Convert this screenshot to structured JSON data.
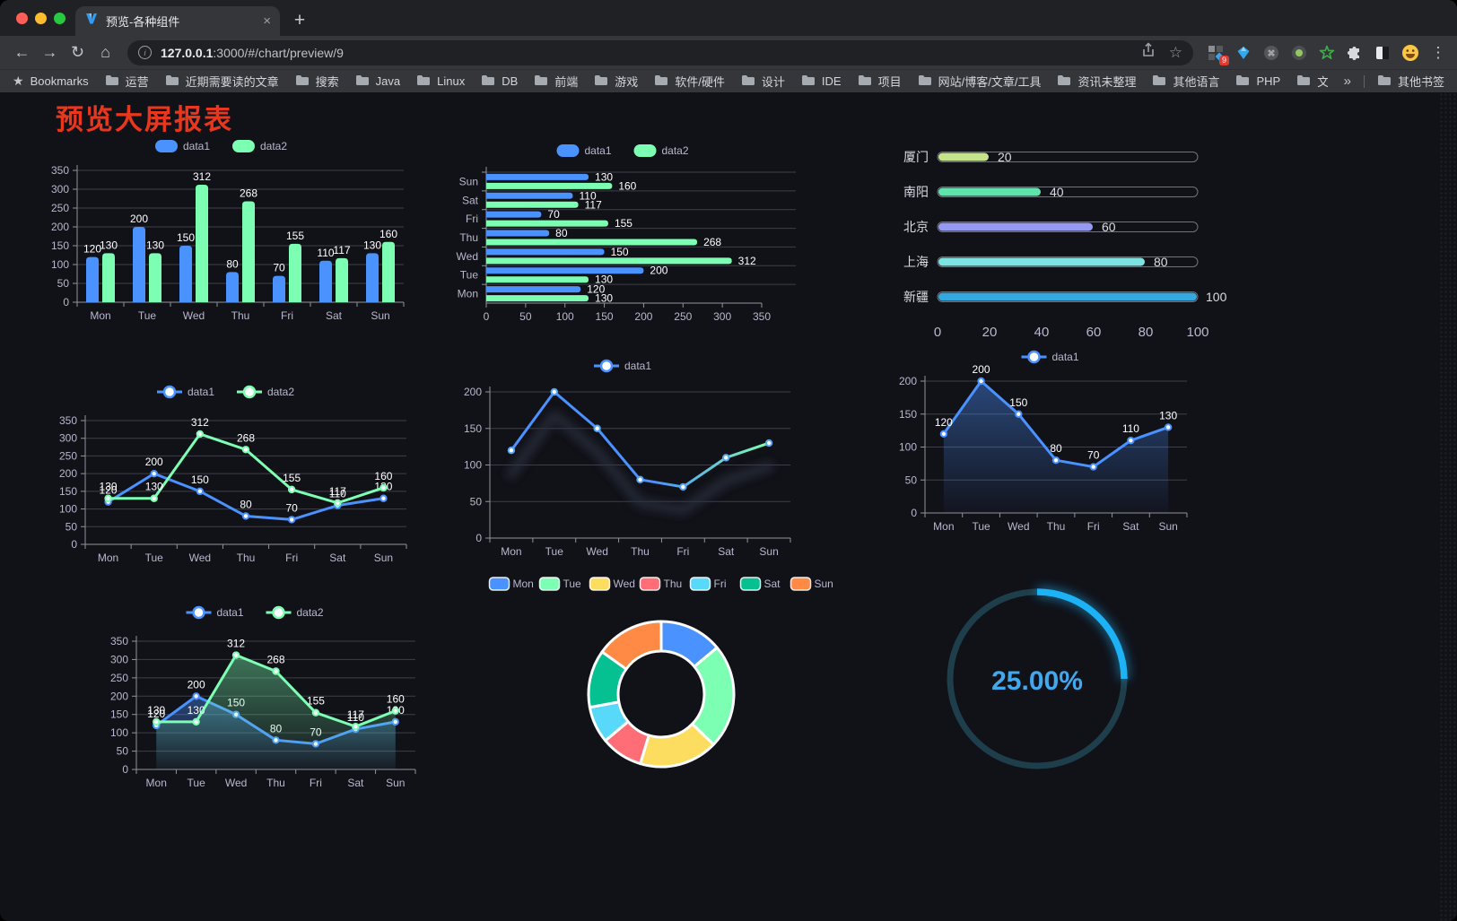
{
  "browser": {
    "tab": {
      "title": "预览-各种组件",
      "close_glyph": "×",
      "new_tab_glyph": "+"
    },
    "address": {
      "host": "127.0.0.1",
      "path": ":3000/#/chart/preview/9"
    },
    "extension_badge": "9",
    "bookmarks_bar": {
      "bookmarks_label": "Bookmarks",
      "folders": [
        "运营",
        "近期需要读的文章",
        "搜索",
        "Java",
        "Linux",
        "DB",
        "前端",
        "游戏",
        "软件/硬件",
        "设计",
        "IDE",
        "项目",
        "网站/博客/文章/工具",
        "资讯未整理",
        "其他语言",
        "PHP",
        "文件服务器"
      ],
      "overflow_glyph": "»",
      "other_bookmarks_label": "其他书签"
    }
  },
  "page": {
    "title": "预览大屏报表",
    "title_color": "#e8371c",
    "background": "#111118"
  },
  "chart_data": [
    {
      "id": "grouped-bar",
      "type": "bar",
      "legend_position": "top",
      "categories": [
        "Mon",
        "Tue",
        "Wed",
        "Thu",
        "Fri",
        "Sat",
        "Sun"
      ],
      "series": [
        {
          "name": "data1",
          "color": "#4992ff",
          "values": [
            120,
            200,
            150,
            80,
            70,
            110,
            130
          ]
        },
        {
          "name": "data2",
          "color": "#7cffb2",
          "values": [
            130,
            130,
            312,
            268,
            155,
            117,
            160
          ]
        }
      ],
      "ylim": [
        0,
        350
      ],
      "ytick_step": 50,
      "value_labels": true,
      "grid": true
    },
    {
      "id": "horizontal-bar",
      "type": "bar",
      "orientation": "horizontal",
      "legend_position": "top",
      "categories": [
        "Mon",
        "Tue",
        "Wed",
        "Thu",
        "Fri",
        "Sat",
        "Sun"
      ],
      "series": [
        {
          "name": "data1",
          "color": "#4992ff",
          "values": [
            120,
            200,
            150,
            80,
            70,
            110,
            130
          ]
        },
        {
          "name": "data2",
          "color": "#7cffb2",
          "values": [
            130,
            130,
            312,
            268,
            155,
            117,
            160
          ]
        }
      ],
      "xlim": [
        0,
        350
      ],
      "xtick_step": 50,
      "value_labels": true,
      "grid": true
    },
    {
      "id": "city-progress",
      "type": "progress",
      "rows": [
        {
          "label": "厦门",
          "value": 20,
          "color": "#c4e38a"
        },
        {
          "label": "南阳",
          "value": 40,
          "color": "#5fe3ad"
        },
        {
          "label": "北京",
          "value": 60,
          "color": "#9599f2"
        },
        {
          "label": "上海",
          "value": 80,
          "color": "#7de3e1"
        },
        {
          "label": "新疆",
          "value": 100,
          "color": "#35a9df"
        }
      ],
      "xlim": [
        0,
        100
      ],
      "xticks": [
        0,
        20,
        40,
        60,
        80,
        100
      ]
    },
    {
      "id": "two-line",
      "type": "line",
      "legend_position": "top",
      "categories": [
        "Mon",
        "Tue",
        "Wed",
        "Thu",
        "Fri",
        "Sat",
        "Sun"
      ],
      "series": [
        {
          "name": "data1",
          "color": "#4992ff",
          "values": [
            120,
            200,
            150,
            80,
            70,
            110,
            130
          ]
        },
        {
          "name": "data2",
          "color": "#7cffb2",
          "values": [
            130,
            130,
            312,
            268,
            155,
            117,
            160
          ]
        }
      ],
      "ylim": [
        0,
        350
      ],
      "ytick_step": 50,
      "value_labels": true,
      "grid": true
    },
    {
      "id": "gradient-line",
      "type": "line",
      "legend_position": "top",
      "categories": [
        "Mon",
        "Tue",
        "Wed",
        "Thu",
        "Fri",
        "Sat",
        "Sun"
      ],
      "series": [
        {
          "name": "data1",
          "color": "#4992ff",
          "values": [
            120,
            200,
            150,
            80,
            70,
            110,
            130
          ]
        }
      ],
      "gradient_colors": [
        "#4992ff",
        "#7cffb2"
      ],
      "shadow": true,
      "ylim": [
        0,
        200
      ],
      "ytick_step": 50,
      "value_labels": false,
      "grid": true
    },
    {
      "id": "single-area",
      "type": "area",
      "area": true,
      "legend_position": "top",
      "categories": [
        "Mon",
        "Tue",
        "Wed",
        "Thu",
        "Fri",
        "Sat",
        "Sun"
      ],
      "series": [
        {
          "name": "data1",
          "color": "#4992ff",
          "values": [
            120,
            200,
            150,
            80,
            70,
            110,
            130
          ]
        }
      ],
      "ylim": [
        0,
        200
      ],
      "ytick_step": 50,
      "value_labels": true,
      "grid": true
    },
    {
      "id": "two-area",
      "type": "area",
      "area": true,
      "legend_position": "top",
      "categories": [
        "Mon",
        "Tue",
        "Wed",
        "Thu",
        "Fri",
        "Sat",
        "Sun"
      ],
      "series": [
        {
          "name": "data1",
          "color": "#4992ff",
          "values": [
            120,
            200,
            150,
            80,
            70,
            110,
            130
          ]
        },
        {
          "name": "data2",
          "color": "#7cffb2",
          "values": [
            130,
            130,
            312,
            268,
            155,
            117,
            160
          ]
        }
      ],
      "ylim": [
        0,
        350
      ],
      "ytick_step": 50,
      "value_labels": true,
      "grid": true
    },
    {
      "id": "weekday-donut",
      "type": "pie",
      "donut": true,
      "legend": [
        "Mon",
        "Tue",
        "Wed",
        "Thu",
        "Fri",
        "Sat",
        "Sun"
      ],
      "values": [
        120,
        200,
        150,
        80,
        70,
        110,
        130
      ],
      "colors": [
        "#4992ff",
        "#7cffb2",
        "#fddd60",
        "#ff6e76",
        "#58d9f9",
        "#05c091",
        "#ff8a45"
      ],
      "legend_position": "top"
    },
    {
      "id": "percent-gauge",
      "type": "gauge",
      "percent": 25,
      "value_label": "25.00%",
      "color": "#1db2f5",
      "track_color": "#1d3e4a",
      "text_color": "#41a8ee"
    }
  ]
}
